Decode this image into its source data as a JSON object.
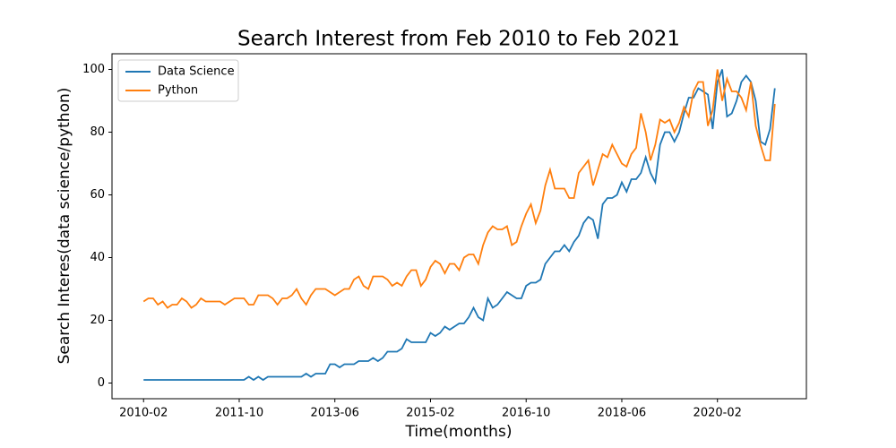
{
  "chart_data": {
    "type": "line",
    "title": "Search Interest from Feb 2010 to Feb 2021",
    "xlabel": "Time(months)",
    "ylabel": "Search Interes(data science/python)",
    "categories": [
      "2010-02",
      null,
      null,
      null,
      null,
      null,
      null,
      null,
      null,
      null,
      null,
      null,
      null,
      null,
      null,
      null,
      null,
      null,
      null,
      null,
      "2011-10",
      null,
      null,
      null,
      null,
      null,
      null,
      null,
      null,
      null,
      null,
      null,
      null,
      null,
      null,
      null,
      null,
      null,
      null,
      null,
      "2013-06",
      null,
      null,
      null,
      null,
      null,
      null,
      null,
      null,
      null,
      null,
      null,
      null,
      null,
      null,
      null,
      null,
      null,
      null,
      null,
      "2015-02",
      null,
      null,
      null,
      null,
      null,
      null,
      null,
      null,
      null,
      null,
      null,
      null,
      null,
      null,
      null,
      null,
      null,
      null,
      null,
      "2016-10",
      null,
      null,
      null,
      null,
      null,
      null,
      null,
      null,
      null,
      null,
      null,
      null,
      null,
      null,
      null,
      null,
      null,
      null,
      null,
      "2018-06",
      null,
      null,
      null,
      null,
      null,
      null,
      null,
      null,
      null,
      null,
      null,
      null,
      null,
      null,
      null,
      null,
      null,
      null,
      null,
      "2020-02",
      null,
      null,
      null,
      null,
      null,
      null,
      null,
      null,
      null,
      null,
      null,
      null
    ],
    "series": [
      {
        "name": "Data Science",
        "color": "#1f77b4",
        "values": [
          1,
          1,
          1,
          1,
          1,
          1,
          1,
          1,
          1,
          1,
          1,
          1,
          1,
          1,
          1,
          1,
          1,
          1,
          1,
          1,
          1,
          1,
          2,
          1,
          2,
          1,
          2,
          2,
          2,
          2,
          2,
          2,
          2,
          2,
          3,
          2,
          3,
          3,
          3,
          6,
          6,
          5,
          6,
          6,
          6,
          7,
          7,
          7,
          8,
          7,
          8,
          10,
          10,
          10,
          11,
          14,
          13,
          13,
          13,
          13,
          16,
          15,
          16,
          18,
          17,
          18,
          19,
          19,
          21,
          24,
          21,
          20,
          27,
          24,
          25,
          27,
          29,
          28,
          27,
          27,
          31,
          32,
          32,
          33,
          38,
          40,
          42,
          42,
          44,
          42,
          45,
          47,
          51,
          53,
          52,
          46,
          57,
          59,
          59,
          60,
          64,
          61,
          65,
          65,
          67,
          72,
          67,
          64,
          76,
          80,
          80,
          77,
          80,
          86,
          91,
          91,
          94,
          93,
          92,
          81,
          96,
          100,
          85,
          86,
          90,
          96,
          98,
          96,
          90,
          77,
          76,
          81,
          94
        ]
      },
      {
        "name": "Python",
        "color": "#ff7f0e",
        "values": [
          26,
          27,
          27,
          25,
          26,
          24,
          25,
          25,
          27,
          26,
          24,
          25,
          27,
          26,
          26,
          26,
          26,
          25,
          26,
          27,
          27,
          27,
          25,
          25,
          28,
          28,
          28,
          27,
          25,
          27,
          27,
          28,
          30,
          27,
          25,
          28,
          30,
          30,
          30,
          29,
          28,
          29,
          30,
          30,
          33,
          34,
          31,
          30,
          34,
          34,
          34,
          33,
          31,
          32,
          31,
          34,
          36,
          36,
          31,
          33,
          37,
          39,
          38,
          35,
          38,
          38,
          36,
          40,
          41,
          41,
          38,
          44,
          48,
          50,
          49,
          49,
          50,
          44,
          45,
          50,
          54,
          57,
          51,
          55,
          63,
          68,
          62,
          62,
          62,
          59,
          59,
          67,
          69,
          71,
          63,
          68,
          73,
          72,
          76,
          73,
          70,
          69,
          73,
          75,
          86,
          80,
          71,
          76,
          84,
          83,
          84,
          80,
          83,
          88,
          85,
          93,
          96,
          96,
          82,
          87,
          100,
          90,
          97,
          93,
          93,
          91,
          87,
          96,
          82,
          76,
          71,
          71,
          89
        ]
      }
    ],
    "xlim": [
      -6.6,
      138.6
    ],
    "ylim": [
      -5,
      105
    ],
    "yticks": [
      0,
      20,
      40,
      60,
      80,
      100
    ],
    "legend": "upper left"
  }
}
